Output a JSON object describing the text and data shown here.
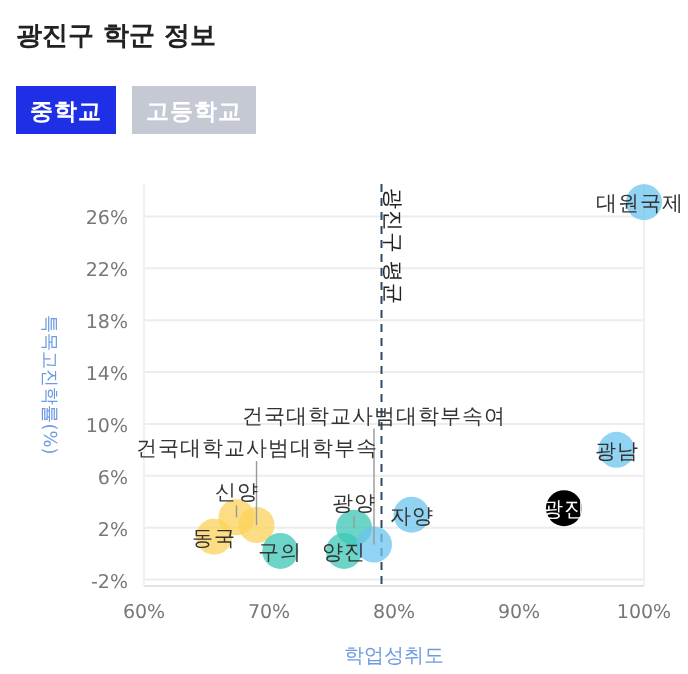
{
  "chart_data": {
    "type": "scatter",
    "title": "광진구 학군 정보",
    "annotations": [
      "중학교",
      "고등학교"
    ],
    "xlabel": "학업성취도",
    "ylabel": "특목고진학률(%)",
    "xlim": [
      60,
      100
    ],
    "xticks": [
      {
        "value": 60,
        "label": "60%"
      },
      {
        "value": 70,
        "label": "70%"
      },
      {
        "value": 80,
        "label": "80%"
      },
      {
        "value": 90,
        "label": "90%"
      },
      {
        "value": 100,
        "label": "100%"
      }
    ],
    "ylim": [
      -2.5,
      28.5
    ],
    "yticks": [
      {
        "value": -2,
        "label": "-2%"
      },
      {
        "value": 2,
        "label": "2%"
      },
      {
        "value": 6,
        "label": "6%"
      },
      {
        "value": 10,
        "label": "10%"
      },
      {
        "value": 14,
        "label": "14%"
      },
      {
        "value": 18,
        "label": "18%"
      },
      {
        "value": 22,
        "label": "22%"
      },
      {
        "value": 26,
        "label": "26%"
      }
    ],
    "grid": "y",
    "legend": false,
    "marker": "circle",
    "ref_lines": [
      {
        "axis": "x",
        "value": 79,
        "label": "광진구 평균",
        "line_style": "dashed",
        "color": "#2e4a6b"
      }
    ],
    "series": [
      {
        "name": "동국",
        "color": "#fcd25a",
        "x": [
          65.6
        ],
        "values": [
          1.3
        ]
      },
      {
        "name": "신양",
        "color": "#fcd25a",
        "x": [
          67.4
        ],
        "values": [
          2.8
        ]
      },
      {
        "name": "건국대학교사범대학부속",
        "color": "#fcd25a",
        "x": [
          69.0
        ],
        "values": [
          2.2
        ]
      },
      {
        "name": "구의",
        "color": "#3cc7b5",
        "x": [
          70.9
        ],
        "values": [
          0.2
        ]
      },
      {
        "name": "양진",
        "color": "#3cc7b5",
        "x": [
          76.0
        ],
        "values": [
          0.2
        ]
      },
      {
        "name": "광양",
        "color": "#3cc7b5",
        "x": [
          76.8
        ],
        "values": [
          2.0
        ]
      },
      {
        "name": "건국대학교사범대학부속여",
        "color": "#6cc4ee",
        "x": [
          78.4
        ],
        "values": [
          0.7
        ]
      },
      {
        "name": "자양",
        "color": "#6cc4ee",
        "x": [
          81.4
        ],
        "values": [
          3.0
        ]
      },
      {
        "name": "광진",
        "color": "#000000",
        "x": [
          93.6
        ],
        "values": [
          3.5
        ]
      },
      {
        "name": "광남",
        "color": "#6cc4ee",
        "x": [
          97.8
        ],
        "values": [
          8.0
        ]
      },
      {
        "name": "대원국제",
        "color": "#6cc4ee",
        "x": [
          100
        ],
        "values": [
          27.1
        ]
      }
    ]
  }
}
